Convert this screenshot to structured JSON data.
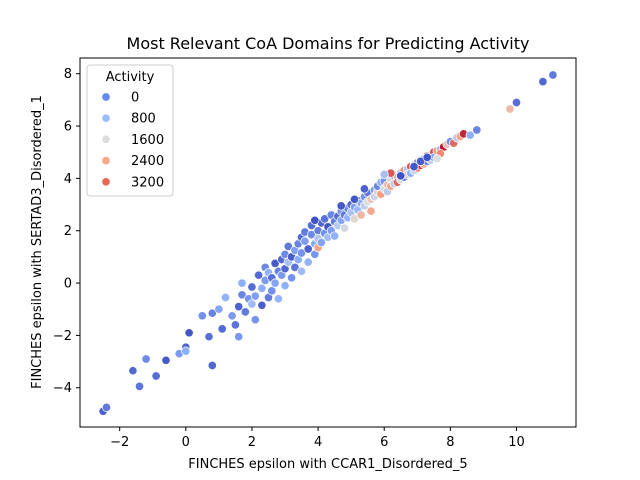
{
  "chart_data": {
    "type": "scatter",
    "title": "Most Relevant CoA Domains for Predicting Activity",
    "xlabel": "FINCHES epsilon with CCAR1_Disordered_5",
    "ylabel": "FINCHES epsilon with SERTAD3_Disordered_1",
    "xlim": [
      -3.2,
      11.8
    ],
    "ylim": [
      -5.5,
      8.6
    ],
    "xticks": [
      -2,
      0,
      2,
      4,
      6,
      8,
      10
    ],
    "yticks": [
      -4,
      -2,
      0,
      2,
      4,
      6,
      8
    ],
    "xtick_labels": [
      "−2",
      "0",
      "2",
      "4",
      "6",
      "8",
      "10"
    ],
    "ytick_labels": [
      "−4",
      "−2",
      "0",
      "2",
      "4",
      "6",
      "8"
    ],
    "grid": false,
    "hue": "Activity",
    "colormap": "coolwarm",
    "hue_range": [
      0,
      3600
    ],
    "legend": {
      "title": "Activity",
      "position": "upper-left",
      "entries": [
        {
          "label": "0",
          "color": "#6788ee"
        },
        {
          "label": "800",
          "color": "#9abbff"
        },
        {
          "label": "1600",
          "color": "#dcdddd"
        },
        {
          "label": "2400",
          "color": "#f7a889"
        },
        {
          "label": "3200",
          "color": "#e26952"
        }
      ]
    },
    "points": [
      [
        -2.5,
        -4.9,
        180
      ],
      [
        -2.4,
        -4.75,
        420
      ],
      [
        -1.6,
        -3.35,
        260
      ],
      [
        -1.4,
        -3.95,
        380
      ],
      [
        -1.2,
        -2.9,
        560
      ],
      [
        -0.9,
        -3.55,
        300
      ],
      [
        -0.6,
        -2.95,
        120
      ],
      [
        -0.2,
        -2.7,
        700
      ],
      [
        0.0,
        -2.45,
        200
      ],
      [
        0.0,
        -2.6,
        900
      ],
      [
        0.1,
        -1.9,
        100
      ],
      [
        0.7,
        -2.05,
        320
      ],
      [
        0.8,
        -3.15,
        250
      ],
      [
        0.5,
        -1.25,
        620
      ],
      [
        0.8,
        -1.15,
        480
      ],
      [
        1.0,
        -1.0,
        800
      ],
      [
        1.1,
        -1.75,
        280
      ],
      [
        1.2,
        -0.55,
        950
      ],
      [
        1.4,
        -1.25,
        700
      ],
      [
        1.5,
        -1.6,
        350
      ],
      [
        1.6,
        -2.05,
        680
      ],
      [
        1.6,
        -0.9,
        210
      ],
      [
        1.7,
        -0.45,
        520
      ],
      [
        1.7,
        0.0,
        900
      ],
      [
        1.8,
        -1.1,
        420
      ],
      [
        1.9,
        -0.6,
        650
      ],
      [
        2.0,
        -0.8,
        1100
      ],
      [
        2.0,
        -0.15,
        300
      ],
      [
        2.1,
        -0.5,
        760
      ],
      [
        2.1,
        -1.4,
        640
      ],
      [
        2.2,
        0.3,
        250
      ],
      [
        2.3,
        -0.2,
        880
      ],
      [
        2.3,
        -0.85,
        180
      ],
      [
        2.4,
        0.6,
        540
      ],
      [
        2.4,
        0.1,
        700
      ],
      [
        2.5,
        -0.55,
        420
      ],
      [
        2.5,
        0.4,
        950
      ],
      [
        2.6,
        0.2,
        330
      ],
      [
        2.6,
        -0.3,
        610
      ],
      [
        2.7,
        0.75,
        150
      ],
      [
        2.7,
        0.0,
        820
      ],
      [
        2.8,
        0.45,
        470
      ],
      [
        2.8,
        -0.6,
        1000
      ],
      [
        2.9,
        0.9,
        280
      ],
      [
        2.9,
        0.3,
        690
      ],
      [
        3.0,
        1.1,
        560
      ],
      [
        3.0,
        0.55,
        230
      ],
      [
        3.0,
        -0.1,
        900
      ],
      [
        3.1,
        0.8,
        1200
      ],
      [
        3.1,
        1.4,
        410
      ],
      [
        3.2,
        0.2,
        630
      ],
      [
        3.2,
        1.0,
        150
      ],
      [
        3.3,
        1.25,
        760
      ],
      [
        3.3,
        0.6,
        380
      ],
      [
        3.4,
        1.5,
        500
      ],
      [
        3.4,
        0.9,
        870
      ],
      [
        3.5,
        1.75,
        260
      ],
      [
        3.5,
        1.15,
        640
      ],
      [
        3.5,
        0.45,
        1100
      ],
      [
        3.6,
        1.6,
        730
      ],
      [
        3.6,
        1.95,
        420
      ],
      [
        3.7,
        1.3,
        190
      ],
      [
        3.7,
        0.8,
        980
      ],
      [
        3.8,
        1.85,
        550
      ],
      [
        3.8,
        2.2,
        310
      ],
      [
        3.9,
        1.5,
        840
      ],
      [
        3.9,
        1.1,
        670
      ],
      [
        4.0,
        1.35,
        2600
      ],
      [
        4.0,
        2.0,
        460
      ],
      [
        4.0,
        1.7,
        1300
      ],
      [
        4.1,
        2.3,
        220
      ],
      [
        4.1,
        1.55,
        780
      ],
      [
        4.2,
        1.9,
        600
      ],
      [
        4.2,
        2.45,
        350
      ],
      [
        4.3,
        1.75,
        1150
      ],
      [
        4.3,
        2.15,
        90
      ],
      [
        4.4,
        2.6,
        520
      ],
      [
        4.4,
        2.0,
        740
      ],
      [
        4.5,
        2.35,
        430
      ],
      [
        4.5,
        1.8,
        960
      ],
      [
        4.6,
        2.55,
        270
      ],
      [
        4.6,
        2.2,
        1400
      ],
      [
        4.7,
        2.75,
        610
      ],
      [
        4.7,
        2.4,
        820
      ],
      [
        4.8,
        2.6,
        380
      ],
      [
        4.8,
        2.1,
        1700
      ],
      [
        4.9,
        2.85,
        540
      ],
      [
        4.9,
        2.5,
        960
      ],
      [
        5.0,
        3.0,
        300
      ],
      [
        5.0,
        2.7,
        1250
      ],
      [
        5.1,
        2.9,
        720
      ],
      [
        5.1,
        2.45,
        1900
      ],
      [
        5.2,
        3.15,
        480
      ],
      [
        5.2,
        2.8,
        1050
      ],
      [
        5.3,
        3.05,
        860
      ],
      [
        5.3,
        2.6,
        2300
      ],
      [
        5.4,
        3.3,
        640
      ],
      [
        5.4,
        2.95,
        1500
      ],
      [
        5.5,
        3.45,
        390
      ],
      [
        5.5,
        3.1,
        1800
      ],
      [
        5.6,
        3.2,
        2100
      ],
      [
        5.6,
        2.75,
        2500
      ],
      [
        5.7,
        3.55,
        700
      ],
      [
        5.7,
        3.3,
        1600
      ],
      [
        5.8,
        3.5,
        2000
      ],
      [
        5.8,
        3.7,
        520
      ],
      [
        5.9,
        3.4,
        2700
      ],
      [
        5.9,
        3.85,
        980
      ],
      [
        6.0,
        3.6,
        1700
      ],
      [
        6.0,
        3.9,
        640
      ],
      [
        6.1,
        3.75,
        2200
      ],
      [
        6.1,
        3.5,
        1400
      ],
      [
        6.2,
        3.95,
        1900
      ],
      [
        6.2,
        3.7,
        2600
      ],
      [
        6.3,
        4.1,
        820
      ],
      [
        6.3,
        3.8,
        1500
      ],
      [
        6.4,
        4.05,
        2400
      ],
      [
        6.4,
        3.85,
        3000
      ],
      [
        6.5,
        4.2,
        1100
      ],
      [
        6.5,
        3.95,
        1800
      ],
      [
        6.6,
        4.3,
        2800
      ],
      [
        6.6,
        4.05,
        560
      ],
      [
        6.7,
        4.35,
        1300
      ],
      [
        6.7,
        4.15,
        2000
      ],
      [
        6.8,
        4.45,
        3100
      ],
      [
        6.8,
        4.2,
        900
      ],
      [
        6.9,
        4.5,
        2300
      ],
      [
        6.9,
        4.3,
        1600
      ],
      [
        7.0,
        4.6,
        700
      ],
      [
        7.0,
        4.4,
        2900
      ],
      [
        7.1,
        4.7,
        1900
      ],
      [
        7.1,
        4.5,
        3300
      ],
      [
        7.2,
        4.75,
        1200
      ],
      [
        7.2,
        4.55,
        2500
      ],
      [
        7.3,
        4.85,
        3400
      ],
      [
        7.3,
        4.65,
        450
      ],
      [
        7.4,
        4.9,
        2100
      ],
      [
        7.4,
        4.7,
        1500
      ],
      [
        7.5,
        5.0,
        3200
      ],
      [
        7.5,
        4.8,
        800
      ],
      [
        7.6,
        5.05,
        2700
      ],
      [
        7.7,
        5.1,
        1000
      ],
      [
        7.8,
        5.2,
        3500
      ],
      [
        7.9,
        5.3,
        2200
      ],
      [
        8.0,
        5.4,
        600
      ],
      [
        8.1,
        5.35,
        3000
      ],
      [
        8.2,
        5.55,
        1400
      ],
      [
        8.3,
        5.6,
        2600
      ],
      [
        8.4,
        5.7,
        3400
      ],
      [
        8.6,
        5.65,
        900
      ],
      [
        8.8,
        5.85,
        500
      ],
      [
        9.8,
        6.65,
        2300
      ],
      [
        10.0,
        6.9,
        300
      ],
      [
        10.8,
        7.7,
        250
      ],
      [
        11.1,
        7.95,
        420
      ],
      [
        6.9,
        4.45,
        100
      ],
      [
        7.1,
        4.65,
        150
      ],
      [
        7.3,
        4.8,
        80
      ],
      [
        6.5,
        4.1,
        60
      ],
      [
        5.4,
        3.6,
        200
      ],
      [
        5.1,
        3.2,
        90
      ],
      [
        4.7,
        2.95,
        110
      ],
      [
        3.9,
        2.4,
        70
      ],
      [
        7.7,
        4.95,
        2800
      ],
      [
        7.6,
        4.75,
        1800
      ],
      [
        6.2,
        4.2,
        3100
      ],
      [
        6.0,
        4.15,
        1200
      ]
    ]
  }
}
